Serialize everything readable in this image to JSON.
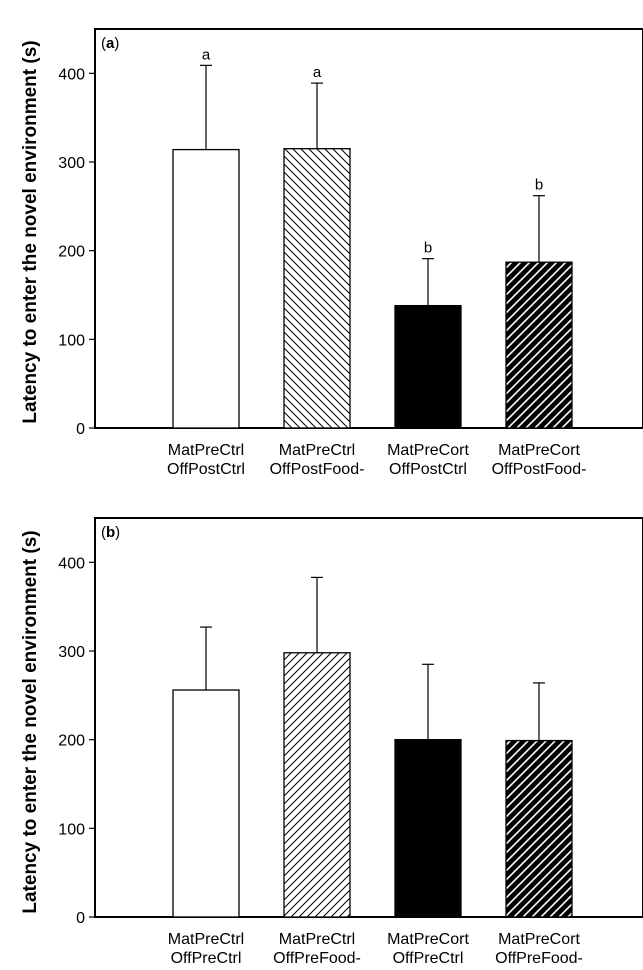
{
  "chart_data": [
    {
      "type": "bar",
      "panel_label": "(a)",
      "panel_letter": "a",
      "ylabel": "Latency to enter the novel environment (s)",
      "xlabel": "",
      "ylim": [
        0,
        450
      ],
      "yticks": [
        0,
        100,
        200,
        300,
        400
      ],
      "grid": false,
      "categories": [
        [
          "MatPreCtrl",
          "OffPostCtrl"
        ],
        [
          "MatPreCtrl",
          "OffPostFood-"
        ],
        [
          "MatPreCort",
          "OffPostCtrl"
        ],
        [
          "MatPreCort",
          "OffPostFood-"
        ]
      ],
      "values": [
        314,
        315,
        138,
        187
      ],
      "errors": [
        95,
        74,
        53,
        75
      ],
      "significance_letters": [
        "a",
        "a",
        "b",
        "b"
      ],
      "fills": [
        "white",
        "hatch-back",
        "black",
        "hatch-forward-on-black"
      ]
    },
    {
      "type": "bar",
      "panel_label": "(b)",
      "panel_letter": "b",
      "ylabel": "Latency to enter the novel environment (s)",
      "xlabel": "",
      "ylim": [
        0,
        450
      ],
      "yticks": [
        0,
        100,
        200,
        300,
        400
      ],
      "grid": false,
      "categories": [
        [
          "MatPreCtrl",
          "OffPreCtrl"
        ],
        [
          "MatPreCtrl",
          "OffPreFood-"
        ],
        [
          "MatPreCort",
          "OffPreCtrl"
        ],
        [
          "MatPreCort",
          "OffPreFood-"
        ]
      ],
      "values": [
        256,
        298,
        200,
        199
      ],
      "errors": [
        71,
        85,
        85,
        65
      ],
      "significance_letters": [],
      "fills": [
        "white",
        "hatch-forward",
        "black",
        "hatch-forward-on-black"
      ]
    }
  ]
}
